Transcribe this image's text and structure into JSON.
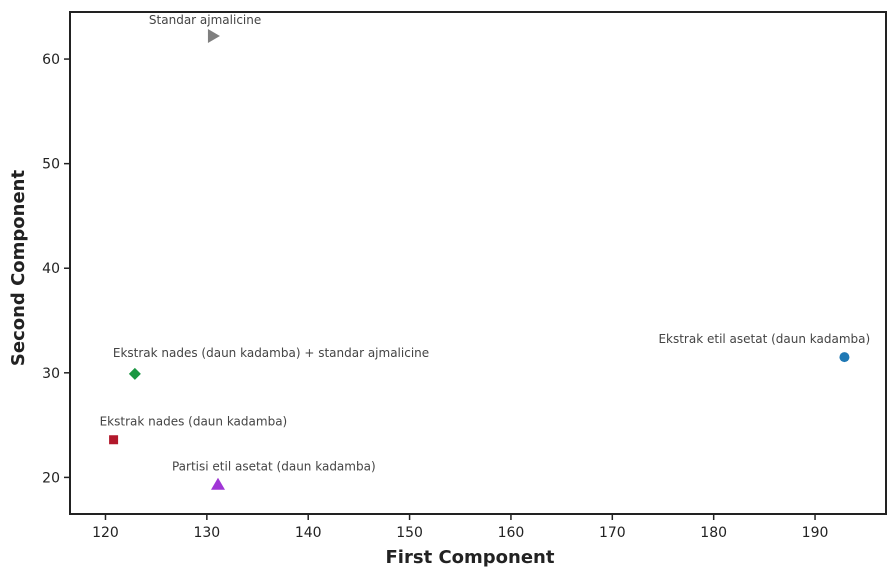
{
  "chart_data": {
    "type": "scatter",
    "xlabel": "First Component",
    "ylabel": "Second Component",
    "xlim": [
      116.5,
      197
    ],
    "ylim": [
      16.5,
      64.5
    ],
    "xticks": [
      120,
      130,
      140,
      150,
      160,
      170,
      180,
      190
    ],
    "yticks": [
      20,
      30,
      40,
      50,
      60
    ],
    "grid": false,
    "points": [
      {
        "label": "Standar ajmalicine",
        "x": 130.6,
        "y": 62.2,
        "marker": "triangle-right",
        "color": "#7f7f7f"
      },
      {
        "label": "Ekstrak nades (daun kadamba) + standar ajmalicine",
        "x": 122.9,
        "y": 29.9,
        "marker": "diamond",
        "color": "#1a9641"
      },
      {
        "label": "Ekstrak nades (daun kadamba)",
        "x": 120.8,
        "y": 23.6,
        "marker": "square",
        "color": "#b2182b"
      },
      {
        "label": "Partisi etil asetat  (daun kadamba)",
        "x": 131.1,
        "y": 19.3,
        "marker": "triangle-up",
        "color": "#a035d6"
      },
      {
        "label": "Ekstrak etil asetat (daun kadamba)",
        "x": 192.9,
        "y": 31.5,
        "marker": "circle",
        "color": "#1f78b4"
      }
    ]
  }
}
